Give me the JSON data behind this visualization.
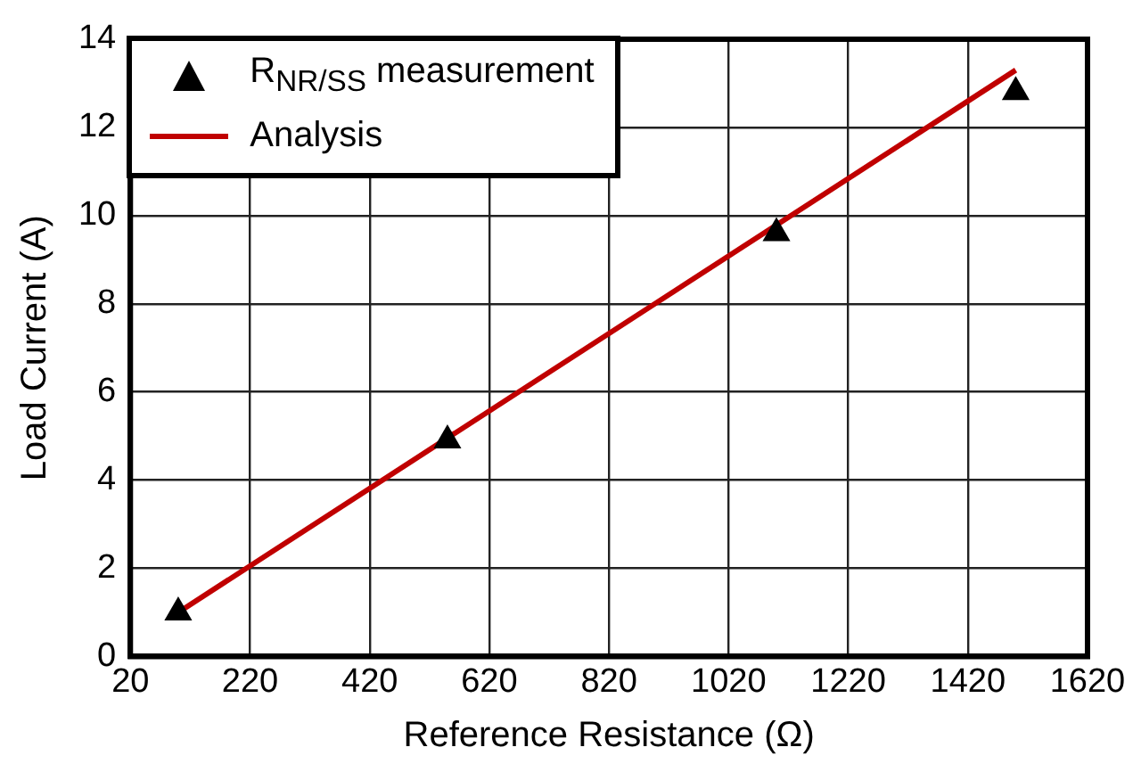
{
  "chart_data": {
    "type": "scatter",
    "xlabel": "Reference Resistance (Ω)",
    "ylabel": "Load Current (A)",
    "xlim": [
      20,
      1620
    ],
    "xticks": [
      20,
      220,
      420,
      620,
      820,
      1020,
      1220,
      1420,
      1620
    ],
    "ylim": [
      0,
      14
    ],
    "yticks": [
      0,
      2,
      4,
      6,
      8,
      10,
      12,
      14
    ],
    "grid": true,
    "legend": "top left",
    "series": [
      {
        "name": "R$_{NR/SS}$ measurement",
        "marker": "triangle",
        "color": "#000000",
        "x": [
          100,
          550,
          1100,
          1500
        ],
        "values": [
          1.0,
          4.9,
          9.6,
          12.8
        ]
      },
      {
        "name": "Analysis",
        "type": "line",
        "marker": "none",
        "color": "#c00000",
        "x": [
          100,
          1500
        ],
        "values": [
          1.0,
          13.3
        ]
      }
    ]
  }
}
